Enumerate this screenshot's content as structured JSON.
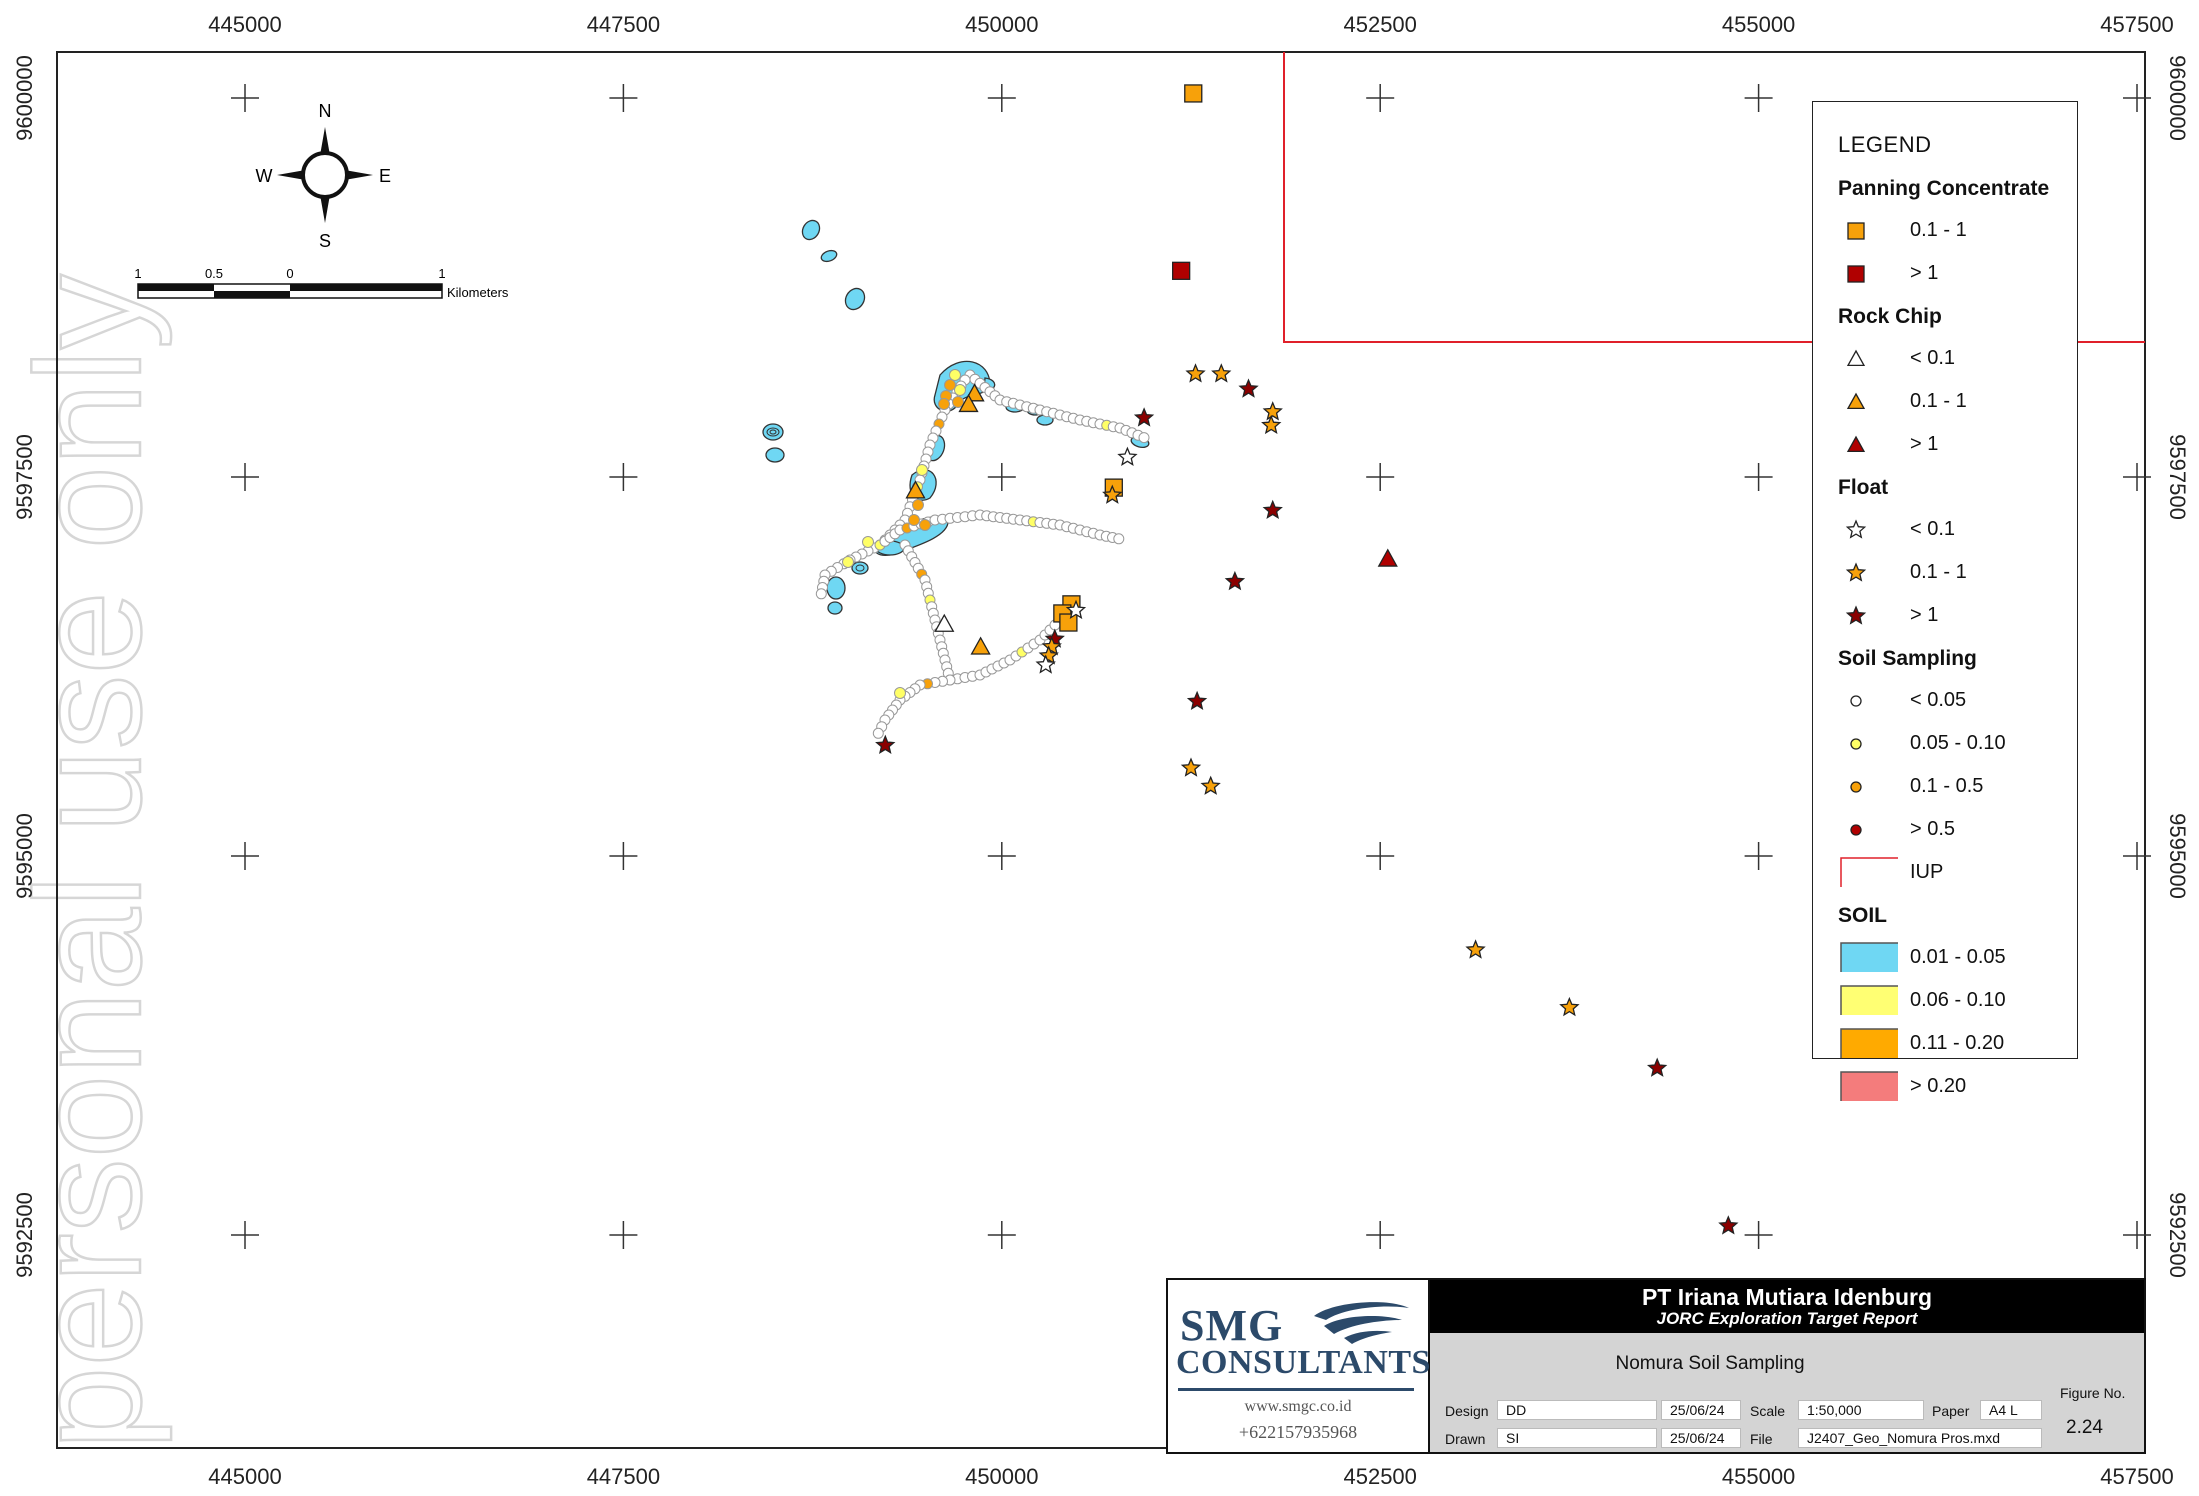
{
  "map": {
    "x_ticks": [
      "445000",
      "447500",
      "450000",
      "452500",
      "455000",
      "457500"
    ],
    "y_ticks": [
      "9600000",
      "9597500",
      "9595000",
      "9592500"
    ],
    "watermark": "personal use only",
    "north_arrow": {
      "n": "N",
      "s": "S",
      "e": "E",
      "w": "W"
    },
    "scale_bar": {
      "labels": [
        "1",
        "0.5",
        "0",
        "1"
      ],
      "unit": "Kilometers"
    },
    "iup_color": "#e0202a",
    "soil_area_color": "#6fd7f3"
  },
  "legend": {
    "title": "LEGEND",
    "sections": [
      {
        "heading": "Panning Concentrate",
        "entries": [
          {
            "label": "0.1 - 1",
            "symbol": "square",
            "color": "#f7a10a"
          },
          {
            "label": "> 1",
            "symbol": "square",
            "color": "#b00000"
          }
        ]
      },
      {
        "heading": "Rock Chip",
        "entries": [
          {
            "label": "< 0.1",
            "symbol": "triangle",
            "color": "#ffffff"
          },
          {
            "label": "0.1 - 1",
            "symbol": "triangle",
            "color": "#f7a10a"
          },
          {
            "label": "> 1",
            "symbol": "triangle",
            "color": "#b00000"
          }
        ]
      },
      {
        "heading": "Float",
        "entries": [
          {
            "label": "< 0.1",
            "symbol": "star",
            "color": "#ffffff"
          },
          {
            "label": "0.1 - 1",
            "symbol": "star",
            "color": "#f7a10a"
          },
          {
            "label": "> 1",
            "symbol": "star",
            "color": "#8b0000"
          }
        ]
      },
      {
        "heading": "Soil Sampling",
        "entries": [
          {
            "label": "< 0.05",
            "symbol": "circle",
            "color": "#ffffff"
          },
          {
            "label": "0.05 - 0.10",
            "symbol": "circle",
            "color": "#ffff66"
          },
          {
            "label": "0.1 - 0.5",
            "symbol": "circle",
            "color": "#f7a10a"
          },
          {
            "label": "> 0.5",
            "symbol": "circle",
            "color": "#b00000"
          },
          {
            "label": "IUP",
            "symbol": "outline",
            "color": "#e0202a"
          }
        ]
      },
      {
        "heading": "SOIL",
        "entries": [
          {
            "label": "0.01 - 0.05",
            "symbol": "box",
            "color": "#6fd7f3"
          },
          {
            "label": "0.06 - 0.10",
            "symbol": "box",
            "color": "#ffff73"
          },
          {
            "label": "0.11 - 0.20",
            "symbol": "box",
            "color": "#ffaa00"
          },
          {
            "label": "> 0.20",
            "symbol": "box",
            "color": "#f47c7c"
          }
        ]
      }
    ]
  },
  "titleblock": {
    "company_logo_line1": "SMG",
    "company_logo_line2": "CONSULTANTS",
    "website": "www.smgc.co.id",
    "phone": "+622157935968",
    "client": "PT Iriana Mutiara Idenburg",
    "report": "JORC Exploration Target Report",
    "figure_title": "Nomura Soil Sampling",
    "figure_no_label": "Figure No.",
    "figure_no": "2.24",
    "design_label": "Design",
    "design": "DD",
    "design_date": "25/06/24",
    "drawn_label": "Drawn",
    "drawn": "SI",
    "drawn_date": "25/06/24",
    "scale_label": "Scale",
    "scale": "1:50,000",
    "paper_label": "Paper",
    "paper": "A4 L",
    "file_label": "File",
    "file": "J2407_Geo_Nomura Pros.mxd"
  },
  "samples": {
    "panning": [
      {
        "e": 451265,
        "n": 9600030,
        "v": "0.1 - 1"
      },
      {
        "e": 451185,
        "n": 9598860,
        "v": "> 1"
      },
      {
        "e": 450740,
        "n": 9597430,
        "v": "0.1 - 1"
      },
      {
        "e": 450460,
        "n": 9596660,
        "v": "0.1 - 1"
      },
      {
        "e": 450400,
        "n": 9596600,
        "v": "0.1 - 1"
      },
      {
        "e": 450440,
        "n": 9596540,
        "v": "0.1 - 1"
      }
    ],
    "rock_chip": [
      {
        "e": 449820,
        "n": 9598050,
        "v": "0.1 - 1"
      },
      {
        "e": 449780,
        "n": 9597980,
        "v": "0.1 - 1"
      },
      {
        "e": 449430,
        "n": 9597410,
        "v": "0.1 - 1"
      },
      {
        "e": 449620,
        "n": 9596530,
        "v": "< 0.1"
      },
      {
        "e": 449860,
        "n": 9596380,
        "v": "0.1 - 1"
      },
      {
        "e": 452550,
        "n": 9596960,
        "v": "> 1"
      }
    ],
    "float": [
      {
        "e": 451280,
        "n": 9598180,
        "v": "0.1 - 1"
      },
      {
        "e": 451450,
        "n": 9598180,
        "v": "0.1 - 1"
      },
      {
        "e": 451630,
        "n": 9598080,
        "v": "> 1"
      },
      {
        "e": 451790,
        "n": 9597930,
        "v": "0.1 - 1"
      },
      {
        "e": 451780,
        "n": 9597840,
        "v": "0.1 - 1"
      },
      {
        "e": 450940,
        "n": 9597890,
        "v": "> 1"
      },
      {
        "e": 450830,
        "n": 9597630,
        "v": "< 0.1"
      },
      {
        "e": 450730,
        "n": 9597380,
        "v": "0.1 - 1"
      },
      {
        "e": 451790,
        "n": 9597280,
        "v": "> 1"
      },
      {
        "e": 451540,
        "n": 9596810,
        "v": "> 1"
      },
      {
        "e": 450490,
        "n": 9596620,
        "v": "< 0.1"
      },
      {
        "e": 450350,
        "n": 9596430,
        "v": "> 1"
      },
      {
        "e": 450330,
        "n": 9596380,
        "v": "0.1 - 1"
      },
      {
        "e": 450310,
        "n": 9596320,
        "v": "0.1 - 1"
      },
      {
        "e": 450290,
        "n": 9596260,
        "v": "< 0.1"
      },
      {
        "e": 451290,
        "n": 9596020,
        "v": "> 1"
      },
      {
        "e": 449230,
        "n": 9595730,
        "v": "> 1"
      },
      {
        "e": 451250,
        "n": 9595580,
        "v": "0.1 - 1"
      },
      {
        "e": 451380,
        "n": 9595460,
        "v": "0.1 - 1"
      },
      {
        "e": 453130,
        "n": 9594380,
        "v": "0.1 - 1"
      },
      {
        "e": 453750,
        "n": 9594000,
        "v": "0.1 - 1"
      },
      {
        "e": 454330,
        "n": 9593600,
        "v": "> 1"
      },
      {
        "e": 454800,
        "n": 9592560,
        "v": "> 1"
      }
    ]
  }
}
